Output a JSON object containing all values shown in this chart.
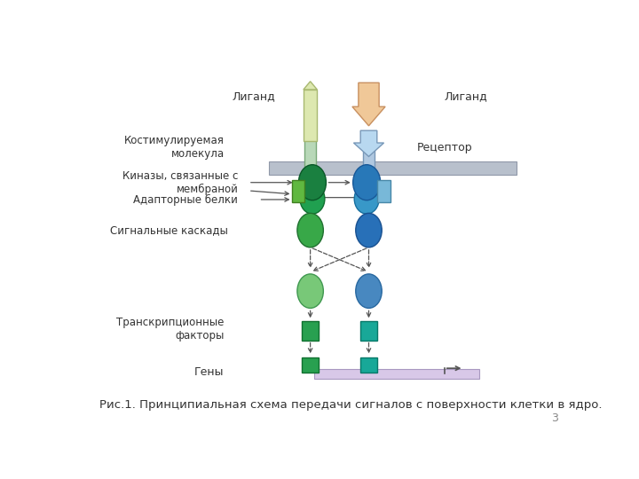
{
  "title": "",
  "caption": "Рис.1. Принципиальная схема передачи сигналов с поверхности клетки в ядро.",
  "page_number": "3",
  "bg_color": "#ffffff",
  "labels": {
    "ligand_left": "Лиганд",
    "ligand_right": "Лиганд",
    "costimul": "Костимулируемая\nмолекула",
    "receptor": "Рецептор",
    "kinases": "Киназы, связанные с\nмембраной",
    "adaptor": "Адапторные белки",
    "cascades": "Сигнальные каскады",
    "transcription": "Транскрипционные\nфакторы",
    "genes": "Гены"
  },
  "colors": {
    "ligand_left_fill": "#dde8b0",
    "ligand_left_stroke": "#a8b870",
    "ligand_right_fill": "#f0c898",
    "ligand_right_stroke": "#c89060",
    "membrane": "#b8c0cc",
    "membrane_stroke": "#9098a8",
    "costimul_fill": "#b8d8b8",
    "costimul_stroke": "#78a878",
    "receptor_fill": "#b0c8e0",
    "receptor_stroke": "#7898b8",
    "kinase_left_fill": "#1a8040",
    "kinase_left_stroke": "#0a5828",
    "kinase_right_fill": "#2878b8",
    "kinase_right_stroke": "#185898",
    "kinase2_left_fill": "#20a050",
    "kinase2_left_stroke": "#107030",
    "kinase2_right_fill": "#3898c8",
    "kinase2_right_stroke": "#1870a0",
    "adaptor_green_fill": "#60b840",
    "adaptor_green_stroke": "#408020",
    "adaptor_blue_fill": "#78b8d8",
    "adaptor_blue_stroke": "#4888a8",
    "casc1_left_fill": "#38a848",
    "casc1_left_stroke": "#207030",
    "casc1_right_fill": "#2870b8",
    "casc1_right_stroke": "#185090",
    "casc2_left_fill": "#78c878",
    "casc2_left_stroke": "#409850",
    "casc2_right_fill": "#4888c0",
    "casc2_right_stroke": "#2868a0",
    "tf_left_fill": "#28a050",
    "tf_left_stroke": "#107030",
    "tf_right_fill": "#18a898",
    "tf_right_stroke": "#087868",
    "gene_left_fill": "#28a050",
    "gene_left_stroke": "#107030",
    "gene_right_fill": "#18a898",
    "gene_right_stroke": "#087868",
    "dna_fill": "#d8c8e8",
    "dna_stroke": "#a898c0",
    "text_color": "#333333",
    "arrow_color": "#555555"
  }
}
